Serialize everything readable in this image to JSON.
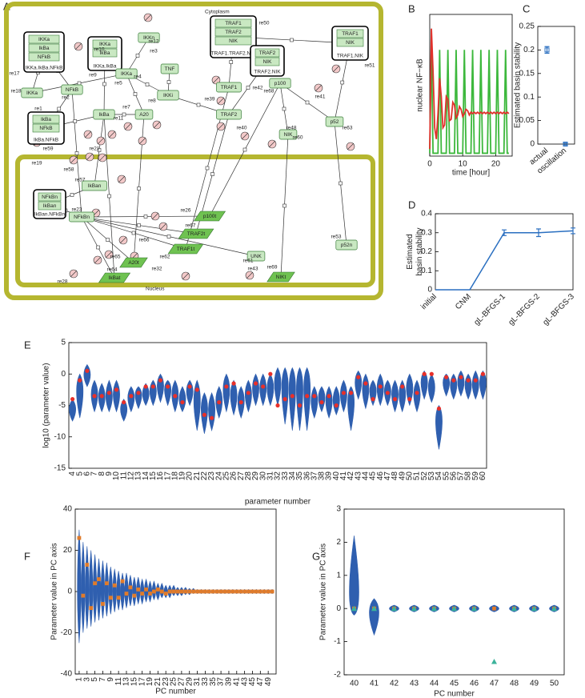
{
  "panel_labels": [
    "A",
    "B",
    "C",
    "D",
    "E",
    "F",
    "G"
  ],
  "diagram": {
    "compartments": {
      "cytoplasm": "Cytoplasm",
      "nucleus": "Nucleus"
    },
    "nodes": [
      {
        "label": "IKKa.IkBa.NFkB",
        "parts": [
          "IKKa",
          "IkBa",
          "NFkB"
        ]
      },
      {
        "label": "IKKa"
      },
      {
        "label": "NFkB"
      },
      {
        "label": "IkBa.NFkB",
        "parts": [
          "IkBa",
          "NFkB"
        ]
      },
      {
        "label": "IKKa.IkBa",
        "parts": [
          "IKKa",
          "IkBa"
        ]
      },
      {
        "label": "IKKn"
      },
      {
        "label": "IKKa"
      },
      {
        "label": "TNF"
      },
      {
        "label": "IKKi"
      },
      {
        "label": "IkBa"
      },
      {
        "label": "A20"
      },
      {
        "label": "TRAF1.TRAF2.NIK",
        "parts": [
          "TRAF1",
          "TRAF2",
          "NIK"
        ]
      },
      {
        "label": "TRAF2.NIK",
        "parts": [
          "TRAF2",
          "NIK"
        ]
      },
      {
        "label": "TRAF1.NIK",
        "parts": [
          "TRAF1",
          "NIK"
        ]
      },
      {
        "label": "TRAF1"
      },
      {
        "label": "p100"
      },
      {
        "label": "TRAF2"
      },
      {
        "label": "p52"
      },
      {
        "label": "NIK"
      },
      {
        "label": "IkBan.NFkBn",
        "parts": [
          "NFkBn",
          "IkBan"
        ]
      },
      {
        "label": "IkBan"
      },
      {
        "label": "NFkBn"
      },
      {
        "label": "p100t"
      },
      {
        "label": "TRAF2t"
      },
      {
        "label": "TRAF1t"
      },
      {
        "label": "A20t"
      },
      {
        "label": "UNK"
      },
      {
        "label": "IkBat"
      },
      {
        "label": "NIKt"
      },
      {
        "label": "p52n"
      }
    ],
    "reactions": [
      "re17",
      "re18",
      "re1",
      "re2",
      "re59",
      "re19",
      "re58",
      "re57",
      "re21",
      "re10",
      "re9",
      "re3",
      "re5",
      "re4",
      "re7",
      "re8",
      "re11",
      "re12",
      "re50",
      "re42",
      "re51",
      "re41",
      "re68",
      "re60",
      "re39",
      "re40",
      "re48",
      "re43",
      "re63",
      "re23",
      "re65",
      "re66",
      "re67",
      "re61",
      "re64",
      "re62",
      "re32",
      "re26",
      "re28",
      "re69",
      "re53"
    ]
  },
  "chart_data": [
    {
      "type": "line",
      "ylabel": "nuclear NF−κB",
      "xlabel": "time [hour]",
      "x": [
        0,
        0.5,
        1,
        1.5,
        2,
        2.5,
        3,
        3.5,
        4,
        4.5,
        5,
        5.5,
        6,
        6.5,
        7,
        7.5,
        8,
        8.5,
        9,
        9.5,
        10,
        10.5,
        11,
        11.5,
        12,
        12.5,
        13,
        13.5,
        14,
        14.5,
        15,
        15.5,
        16,
        16.5,
        17,
        17.5,
        18,
        18.5,
        19,
        19.5,
        20,
        20.5,
        21,
        21.5,
        22,
        22.5,
        23,
        23.5,
        24
      ],
      "xlim": [
        0,
        25
      ],
      "xticks": [
        0,
        10,
        20
      ],
      "ylim": [
        0,
        1
      ],
      "series": [
        {
          "color": "#3cb83c",
          "values": [
            0.02,
            0.8,
            0.02,
            0.02,
            0.02,
            0.02,
            0.75,
            0.02,
            0.02,
            0.02,
            0.02,
            0.75,
            0.02,
            0.02,
            0.02,
            0.02,
            0.75,
            0.02,
            0.02,
            0.02,
            0.02,
            0.75,
            0.02,
            0.02,
            0.02,
            0.02,
            0.75,
            0.02,
            0.02,
            0.02,
            0.02,
            0.75,
            0.02,
            0.02,
            0.02,
            0.02,
            0.75,
            0.02,
            0.02,
            0.02,
            0.02,
            0.75,
            0.02,
            0.02,
            0.02,
            0.02,
            0.75,
            0.02,
            0.02
          ]
        },
        {
          "color": "#e0302a",
          "values": [
            0.05,
            0.9,
            0.6,
            0.2,
            0.12,
            0.3,
            0.55,
            0.42,
            0.2,
            0.22,
            0.42,
            0.4,
            0.25,
            0.26,
            0.38,
            0.36,
            0.27,
            0.29,
            0.35,
            0.33,
            0.28,
            0.3,
            0.33,
            0.32,
            0.29,
            0.31,
            0.3,
            0.31,
            0.3,
            0.31,
            0.3,
            0.31,
            0.3,
            0.31,
            0.3,
            0.31,
            0.3,
            0.31,
            0.3,
            0.31,
            0.3,
            0.31,
            0.3,
            0.31,
            0.3,
            0.31,
            0.3,
            0.31,
            0.3
          ]
        }
      ]
    },
    {
      "type": "errorbar",
      "ylabel": "Estimated basin stability",
      "categories": [
        "actual",
        "oscillation"
      ],
      "values": [
        0.2,
        0
      ],
      "errors": [
        0.007,
        0.002
      ],
      "color": "#2a6fc0",
      "ylim": [
        0,
        0.25
      ],
      "yticks": [
        0,
        0.05,
        0.1,
        0.15,
        0.2,
        0.25
      ]
    },
    {
      "type": "line",
      "ylabel": "Estimated basin stability",
      "categories": [
        "initial",
        "CNM",
        "gL-BFGS-1",
        "gL-BFGS-2",
        "gL-BFGS-3"
      ],
      "values": [
        0,
        0,
        0.3,
        0.3,
        0.31
      ],
      "errors": [
        0,
        0,
        0.015,
        0.02,
        0.015
      ],
      "color": "#2a6fc0",
      "ylim": [
        0,
        0.4
      ],
      "yticks": [
        0,
        0.1,
        0.2,
        0.3,
        0.4
      ]
    },
    {
      "type": "swarm",
      "ylabel": "log10 (parameter value)",
      "xlabel": "parameter number",
      "categories": [
        "4",
        "5",
        "6",
        "7",
        "8",
        "9",
        "10",
        "11",
        "12",
        "13",
        "14",
        "15",
        "16",
        "17",
        "18",
        "19",
        "20",
        "21",
        "22",
        "23",
        "24",
        "25",
        "26",
        "27",
        "28",
        "29",
        "30",
        "31",
        "32",
        "33",
        "34",
        "35",
        "36",
        "37",
        "38",
        "39",
        "40",
        "41",
        "42",
        "43",
        "44",
        "45",
        "46",
        "47",
        "48",
        "49",
        "50",
        "51",
        "52",
        "53",
        "54",
        "55",
        "56",
        "57",
        "58",
        "59",
        "60"
      ],
      "lows": [
        -7.5,
        -7,
        -2,
        -6,
        -6,
        -6,
        -6,
        -7.5,
        -6,
        -5.5,
        -5,
        -5,
        -4.5,
        -5,
        -6,
        -6,
        -5,
        -9,
        -9.5,
        -9,
        -7,
        -6,
        -6.5,
        -7,
        -6,
        -5,
        -5,
        -5,
        -5,
        -8,
        -9,
        -9,
        -9,
        -7,
        -6,
        -7,
        -6.5,
        -6,
        -9,
        -4,
        -5.5,
        -5,
        -5,
        -5,
        -6,
        -6,
        -5,
        -6,
        -4,
        -4.5,
        -12,
        -3.5,
        -4,
        -3.5,
        -4,
        -4,
        -4
      ],
      "centers": [
        -5.5,
        -2,
        0,
        -3,
        -3.5,
        -3.5,
        -3,
        -5.5,
        -3.5,
        -3,
        -3,
        -2.5,
        -1.5,
        -2,
        -3,
        -4,
        -2.5,
        -3.5,
        -5,
        -5.5,
        -4,
        -2,
        -3,
        -4,
        -3,
        -2,
        -2,
        -2,
        -1,
        -1,
        -1,
        -1,
        -1,
        -4,
        -3.5,
        -4,
        -4,
        -3,
        -3.5,
        -1,
        -2,
        -2.5,
        -2,
        -2.5,
        -3,
        -3,
        -2,
        -3,
        -1,
        -2,
        -6.5,
        -1,
        -1.5,
        -1,
        -1.5,
        -1.5,
        -1
      ],
      "highs": [
        -4,
        0,
        1.5,
        -1,
        -1.5,
        -1,
        -1,
        -4,
        -2,
        -2,
        -1.5,
        -1,
        0,
        -1,
        -1,
        -2,
        -1,
        -1,
        -3,
        -3,
        -2,
        0,
        -1,
        -2,
        -1,
        0,
        0,
        0,
        1,
        1,
        1,
        1,
        1,
        -2,
        -2,
        -2,
        -2,
        -1,
        -2,
        0.5,
        0,
        -1,
        0,
        -1,
        -1,
        -1,
        0,
        -1,
        0.5,
        0,
        -5,
        0,
        0,
        0.5,
        0,
        0.5,
        0.5
      ],
      "color": "#2f5faf",
      "markers": [
        {
          "color": "#e8302a",
          "shape": "circle",
          "values": [
            -4,
            -1,
            0.5,
            -3.5,
            -3.5,
            -3,
            -2.5,
            -4.5,
            -3.5,
            -3,
            -2,
            -2,
            -1,
            -2,
            -3.5,
            -4.5,
            -2,
            -2.5,
            -6.5,
            -7,
            -4.5,
            -2,
            -1.5,
            -4.5,
            -3,
            -1.5,
            -2,
            0,
            -5,
            -4,
            -3.5,
            -5,
            -3.5,
            -3.5,
            -4.5,
            -3.5,
            -5,
            -3,
            -3,
            -0.5,
            -1.5,
            -4,
            -2,
            -3,
            -4,
            -2,
            -4,
            -3,
            0,
            0,
            -5.5,
            -0.5,
            -1,
            -0.5,
            -1,
            -1,
            0
          ]
        }
      ],
      "ylim": [
        -15,
        5
      ],
      "yticks": [
        -15,
        -10,
        -5,
        0,
        5
      ]
    },
    {
      "type": "swarm",
      "ylabel": "Parameter value in PC axis",
      "xlabel": "PC number",
      "x": [
        1,
        2,
        3,
        4,
        5,
        6,
        7,
        8,
        9,
        10,
        11,
        12,
        13,
        14,
        15,
        16,
        17,
        18,
        19,
        20,
        21,
        22,
        23,
        24,
        25,
        26,
        27,
        28,
        29,
        30,
        31,
        32,
        33,
        34,
        35,
        36,
        37,
        38,
        39,
        40,
        41,
        42,
        43,
        44,
        45,
        46,
        47,
        48,
        49,
        50
      ],
      "xlim": [
        0,
        51
      ],
      "xticks": [
        1,
        3,
        5,
        7,
        9,
        11,
        13,
        15,
        17,
        19,
        21,
        23,
        25,
        27,
        29,
        31,
        33,
        35,
        37,
        39,
        41,
        43,
        45,
        47,
        49
      ],
      "lows": [
        -25,
        -20,
        -18,
        -17,
        -15,
        -14,
        -13,
        -12,
        -11,
        -10,
        -9,
        -9,
        -8,
        -7,
        -7,
        -6,
        -6,
        -5,
        -5,
        -4,
        -4,
        -3,
        -3,
        -3,
        -2,
        -2,
        -2,
        -1.5,
        -1.5,
        -1,
        -1,
        -1,
        -1,
        -1,
        -1,
        -1,
        -1,
        -1,
        -1,
        -1,
        -1,
        -1,
        -1,
        -1,
        -1,
        -1,
        -1,
        -1,
        -1,
        -1
      ],
      "centers": [
        0,
        0,
        0,
        0,
        0,
        0,
        0,
        0,
        0,
        0,
        0,
        0,
        0,
        0,
        0,
        0,
        0,
        0,
        0,
        0,
        0,
        0,
        0,
        0,
        0,
        0,
        0,
        0,
        0,
        0,
        0,
        0,
        0,
        0,
        0,
        0,
        0,
        0,
        0,
        0,
        0,
        0,
        0,
        0,
        0,
        0,
        0,
        0,
        0,
        0
      ],
      "highs": [
        30,
        24,
        22,
        20,
        18,
        16,
        15,
        14,
        12,
        11,
        10,
        9,
        9,
        8,
        7,
        7,
        6,
        6,
        5,
        5,
        4,
        4,
        3,
        3,
        3,
        2,
        2,
        2,
        1.5,
        1.5,
        1,
        1,
        1,
        1,
        1,
        1,
        1,
        1,
        1,
        1,
        1,
        1,
        1,
        1,
        1,
        1,
        1,
        1,
        1,
        1
      ],
      "color": "#2f5faf",
      "markers": [
        {
          "color": "#e07b2a",
          "shape": "square",
          "values": [
            26,
            -2,
            13,
            -8,
            4,
            6,
            -6,
            4,
            -3,
            3,
            -3,
            5,
            -1,
            2,
            -2,
            1,
            -1,
            1,
            -1,
            0,
            1,
            0,
            -1,
            0,
            0,
            0,
            0,
            0,
            0,
            0,
            0,
            0,
            0,
            0,
            0,
            0,
            0,
            0,
            0,
            0,
            0,
            0,
            0,
            0,
            0,
            0,
            0,
            0,
            0,
            0
          ]
        }
      ],
      "ylim": [
        -40,
        40
      ],
      "yticks": [
        -40,
        -20,
        0,
        20,
        40
      ]
    },
    {
      "type": "swarm",
      "ylabel": "Parameter value in PC axis",
      "xlabel": "PC number",
      "categories": [
        "40",
        "41",
        "42",
        "43",
        "44",
        "45",
        "46",
        "47",
        "48",
        "49",
        "50"
      ],
      "lows": [
        -0.2,
        -0.8,
        -0.1,
        -0.1,
        -0.1,
        -0.1,
        -0.1,
        -0.1,
        -0.1,
        -0.1,
        -0.1
      ],
      "centers": [
        0,
        0,
        0,
        0,
        0,
        0,
        0,
        0,
        0,
        0,
        0
      ],
      "highs": [
        2.2,
        0.3,
        0.1,
        0.1,
        0.1,
        0.1,
        0.1,
        0.1,
        0.1,
        0.1,
        0.1
      ],
      "color": "#2f5faf",
      "markers": [
        {
          "color": "#e07b2a",
          "shape": "square",
          "values": [
            0,
            0,
            0,
            0,
            0,
            0,
            0,
            0,
            0,
            0,
            0
          ]
        },
        {
          "color": "#3cb39b",
          "shape": "triangle",
          "values": [
            0,
            0,
            0,
            0,
            0,
            0,
            0,
            -1.6,
            0,
            0,
            0
          ]
        }
      ],
      "ylim": [
        -2,
        3
      ],
      "yticks": [
        -2,
        -1,
        0,
        1,
        2,
        3
      ]
    }
  ]
}
